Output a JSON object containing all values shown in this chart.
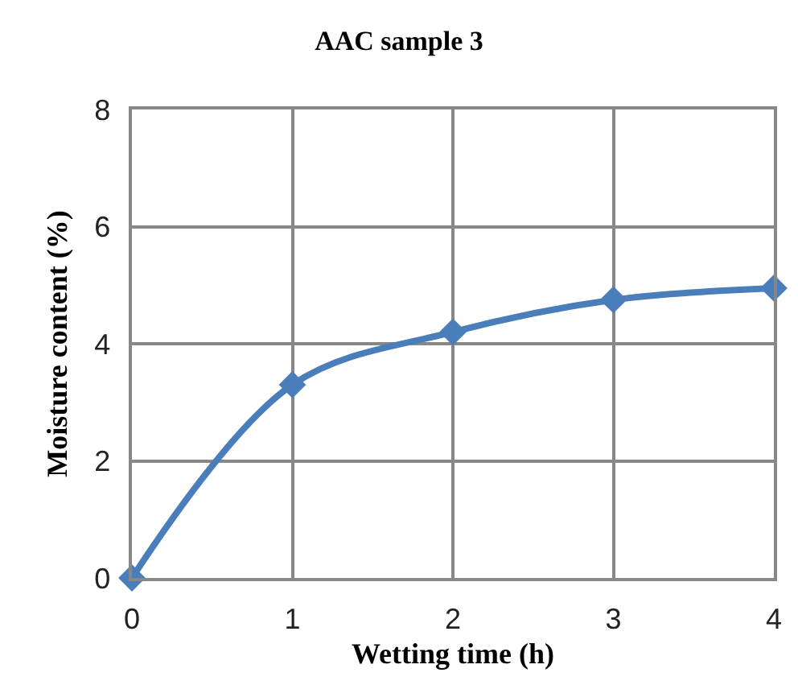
{
  "chart_data": {
    "type": "line",
    "title": "AAC sample 3",
    "xlabel": "Wetting time (h)",
    "ylabel": "Moisture content (%)",
    "x": [
      0,
      1,
      2,
      3,
      4
    ],
    "series": [
      {
        "color": "#4a7ebb",
        "values": [
          0,
          3.3,
          4.2,
          4.75,
          4.95
        ]
      }
    ],
    "xlim": [
      0,
      4
    ],
    "xticks": [
      0,
      1,
      2,
      3,
      4
    ],
    "ylim": [
      0,
      8
    ],
    "yticks": [
      0,
      2,
      4,
      6,
      8
    ],
    "grid": true,
    "marker": "diamond",
    "line_style": "solid"
  }
}
